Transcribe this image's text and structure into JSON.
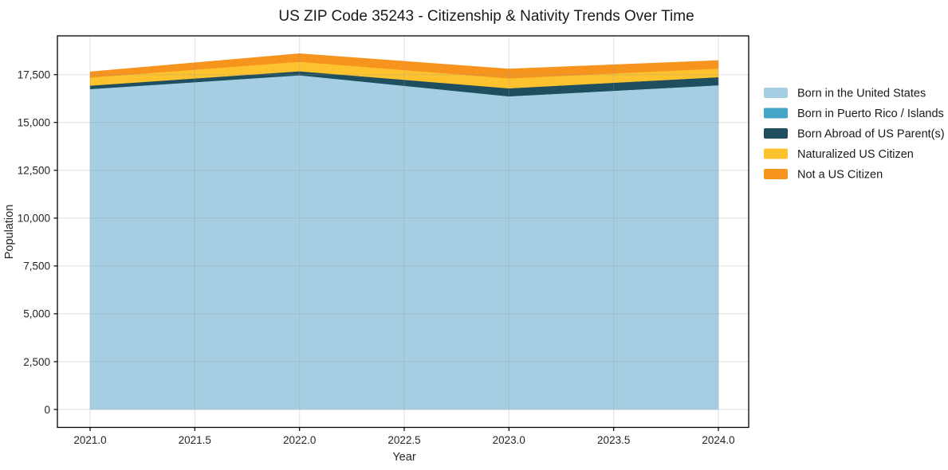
{
  "chart_data": {
    "type": "area",
    "stacked": true,
    "title": "US ZIP Code 35243 - Citizenship & Nativity Trends Over Time",
    "xlabel": "Year",
    "ylabel": "Population",
    "x": [
      2021,
      2022,
      2023,
      2024
    ],
    "series": [
      {
        "name": "Born in the United States",
        "color": "#a6cee3",
        "values": [
          16750,
          17470,
          16370,
          16950
        ]
      },
      {
        "name": "Born in Puerto Rico / Islands",
        "color": "#44a5c6",
        "values": [
          0,
          0,
          0,
          0
        ]
      },
      {
        "name": "Born Abroad of US Parent(s)",
        "color": "#1f4e5f",
        "values": [
          180,
          210,
          420,
          420
        ]
      },
      {
        "name": "Naturalized US Citizen",
        "color": "#fdc32f",
        "values": [
          420,
          500,
          520,
          450
        ]
      },
      {
        "name": "Not a US Citizen",
        "color": "#f6941e",
        "values": [
          300,
          420,
          490,
          420
        ]
      }
    ],
    "stack_totals": [
      17650,
      18600,
      17800,
      18240
    ],
    "x_ticks": [
      2021.0,
      2021.5,
      2022.0,
      2022.5,
      2023.0,
      2023.5,
      2024.0
    ],
    "x_tick_labels": [
      "2021.0",
      "2021.5",
      "2022.0",
      "2022.5",
      "2023.0",
      "2023.5",
      "2024.0"
    ],
    "y_ticks": [
      0,
      2500,
      5000,
      7500,
      10000,
      12500,
      15000,
      17500
    ],
    "y_tick_labels": [
      "0",
      "2,500",
      "5,000",
      "7,500",
      "10,000",
      "12,500",
      "15,000",
      "17,500"
    ],
    "xlim": [
      2020.85,
      2024.15
    ],
    "ylim": [
      0,
      18600
    ],
    "grid": true,
    "legend_position": "outside-right",
    "colors": {
      "spine": "#000000",
      "grid": "rgba(150,150,150,0.30)",
      "tick": "#000000"
    }
  }
}
